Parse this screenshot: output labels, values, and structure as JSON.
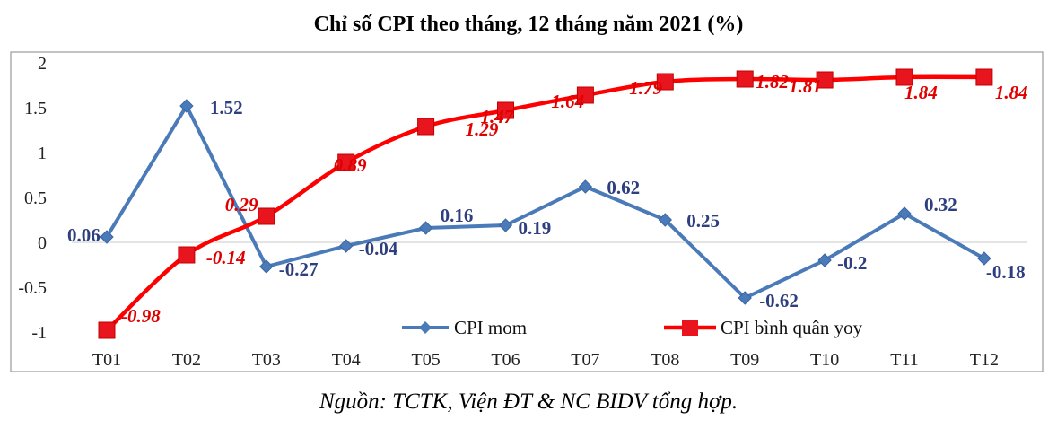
{
  "source_note": "Nguồn: TCTK, Viện ĐT & NC BIDV tổng hợp.",
  "chart_data": {
    "type": "line",
    "title": "Chỉ số CPI theo tháng, 12 tháng năm 2021 (%)",
    "categories": [
      "T01",
      "T02",
      "T03",
      "T04",
      "T05",
      "T06",
      "T07",
      "T08",
      "T09",
      "T10",
      "T11",
      "T12"
    ],
    "ylim": [
      -1,
      2
    ],
    "yticks": [
      "-1",
      "-0.5",
      "0",
      "0.5",
      "1",
      "1.5",
      "2"
    ],
    "grid": false,
    "legend_position": "bottom-center",
    "series": [
      {
        "name": "CPI mom",
        "color": "#4a7ab8",
        "marker": "diamond",
        "values": [
          0.06,
          1.52,
          -0.27,
          -0.04,
          0.16,
          0.19,
          0.62,
          0.25,
          -0.62,
          -0.2,
          0.32,
          -0.18
        ],
        "labels": [
          "0.06",
          "1.52",
          "-0.27",
          "-0.04",
          "0.16",
          "0.19",
          "0.62",
          "0.25",
          "-0.62",
          "-0.2",
          "0.32",
          "-0.18"
        ]
      },
      {
        "name": "CPI bình quân yoy",
        "color": "#ff0000",
        "marker": "square",
        "values": [
          -0.98,
          -0.14,
          0.29,
          0.89,
          1.29,
          1.47,
          1.64,
          1.79,
          1.82,
          1.81,
          1.84,
          1.84
        ],
        "labels": [
          "-0.98",
          "-0.14",
          "0.29",
          "0.89",
          "1.29",
          "1.47",
          "1.64",
          "1.79",
          "1.82",
          "1.81",
          "1.84",
          "1.84"
        ]
      }
    ]
  }
}
